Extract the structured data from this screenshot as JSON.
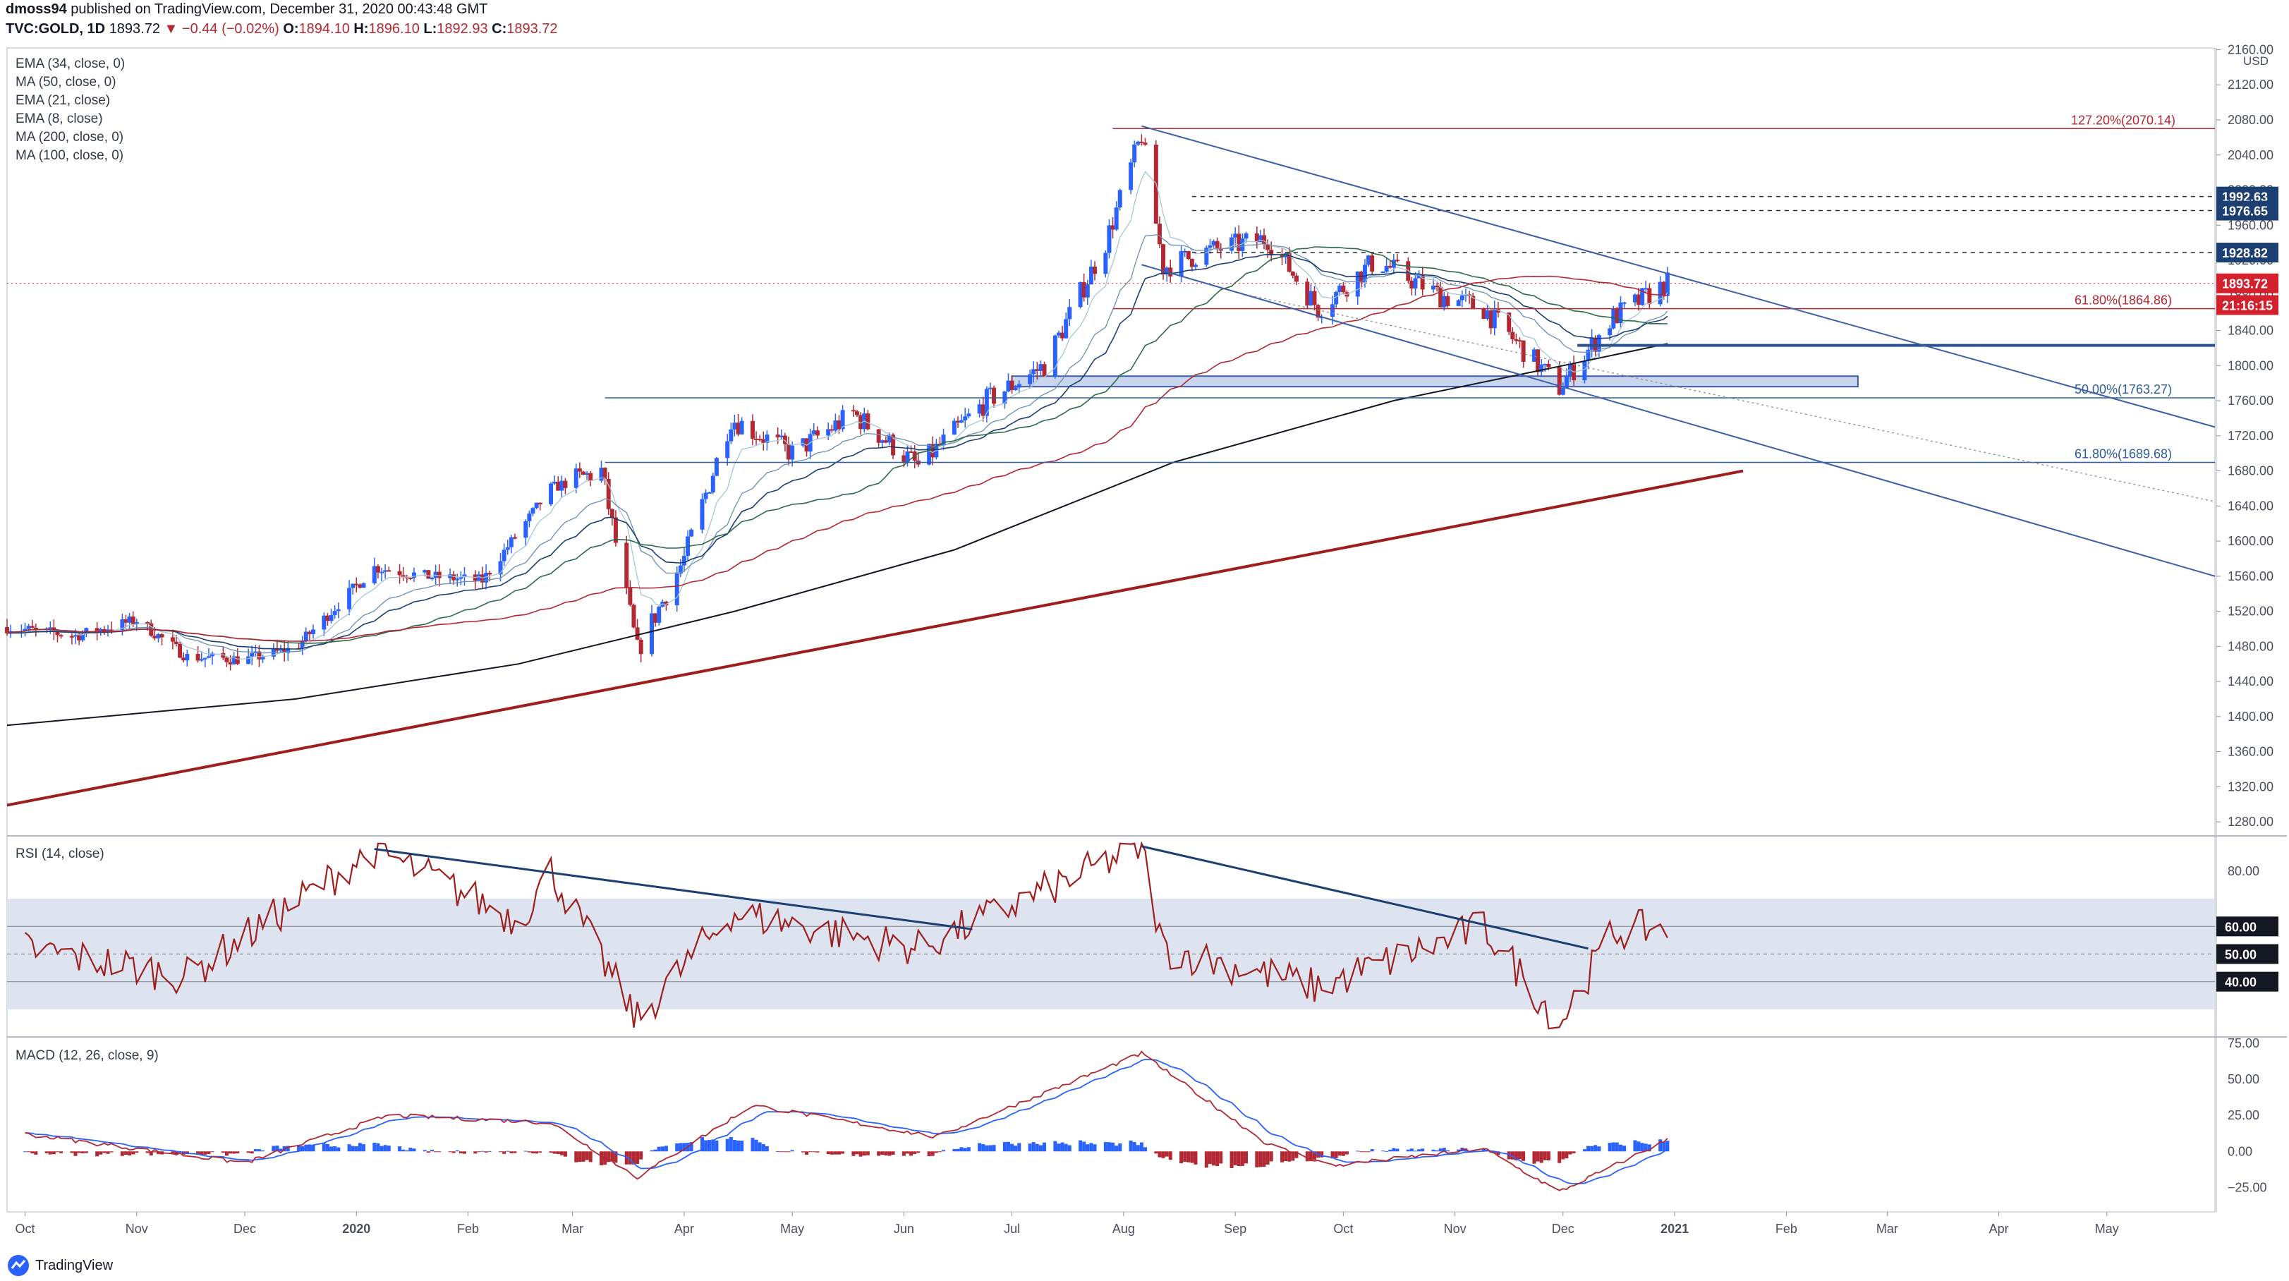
{
  "header": {
    "author": "dmoss94",
    "published": "published on TradingView.com, December 31, 2020 00:43:48 GMT",
    "symbol": "TVC:GOLD, 1D",
    "last": "1893.72",
    "change": "−0.44 (−0.02%)",
    "o_label": "O:",
    "o": "1894.10",
    "h_label": "H:",
    "h": "1896.10",
    "l_label": "L:",
    "l": "1892.93",
    "c_label": "C:",
    "c": "1893.72"
  },
  "indicators": [
    "EMA (34, close, 0)",
    "MA (50, close, 0)",
    "EMA (21, close)",
    "EMA (8, close)",
    "MA (200, close, 0)",
    "MA (100, close, 0)"
  ],
  "footer": {
    "brand": "TradingView"
  },
  "colors": {
    "up": "#2962ff",
    "down": "#b22833",
    "ema34": "#1c3f73",
    "ma50": "#2e6b4a",
    "ema21": "#6a8fb0",
    "ema8": "#a7c6d8",
    "ma200": "#131722",
    "ma100": "#b22833",
    "channel": "#3d5ea8",
    "support": "#9e1d1d",
    "rsi": "#9e1d1d",
    "macd": "#b22833",
    "signal": "#2962ff"
  },
  "chart_data": [
    {
      "type": "candlestick",
      "title": "TVC:GOLD, 1D",
      "currency": "USD",
      "x_ticks": [
        "Oct",
        "Nov",
        "Dec",
        "2020",
        "Feb",
        "Mar",
        "Apr",
        "May",
        "Jun",
        "Jul",
        "Aug",
        "Sep",
        "Oct",
        "Nov",
        "Dec",
        "2021",
        "Feb",
        "Mar",
        "Apr",
        "May"
      ],
      "y_ticks": [
        "2160.00",
        "2120.00",
        "2080.00",
        "2040.00",
        "2000.00",
        "1960.00",
        "1920.00",
        "1880.00",
        "1840.00",
        "1800.00",
        "1760.00",
        "1720.00",
        "1680.00",
        "1640.00",
        "1600.00",
        "1560.00",
        "1520.00",
        "1480.00",
        "1440.00",
        "1400.00",
        "1360.00",
        "1320.00",
        "1280.00"
      ],
      "ylim": [
        1264,
        2162
      ],
      "price_series_monthly": [
        {
          "date": "2019-09-26",
          "close": 1502
        },
        {
          "date": "2019-10-15",
          "close": 1492
        },
        {
          "date": "2019-11-01",
          "close": 1510
        },
        {
          "date": "2019-11-15",
          "close": 1468
        },
        {
          "date": "2019-12-01",
          "close": 1465
        },
        {
          "date": "2019-12-15",
          "close": 1478
        },
        {
          "date": "2020-01-06",
          "close": 1570
        },
        {
          "date": "2020-01-20",
          "close": 1560
        },
        {
          "date": "2020-02-05",
          "close": 1555
        },
        {
          "date": "2020-02-24",
          "close": 1660
        },
        {
          "date": "2020-03-09",
          "close": 1680
        },
        {
          "date": "2020-03-19",
          "close": 1475
        },
        {
          "date": "2020-04-01",
          "close": 1580
        },
        {
          "date": "2020-04-14",
          "close": 1740
        },
        {
          "date": "2020-05-01",
          "close": 1700
        },
        {
          "date": "2020-05-18",
          "close": 1745
        },
        {
          "date": "2020-06-05",
          "close": 1685
        },
        {
          "date": "2020-06-24",
          "close": 1760
        },
        {
          "date": "2020-07-10",
          "close": 1800
        },
        {
          "date": "2020-07-27",
          "close": 1940
        },
        {
          "date": "2020-08-06",
          "close": 2063
        },
        {
          "date": "2020-08-12",
          "close": 1912
        },
        {
          "date": "2020-08-24",
          "close": 1930
        },
        {
          "date": "2020-09-10",
          "close": 1945
        },
        {
          "date": "2020-09-24",
          "close": 1865
        },
        {
          "date": "2020-10-10",
          "close": 1920
        },
        {
          "date": "2020-10-28",
          "close": 1880
        },
        {
          "date": "2020-11-09",
          "close": 1865
        },
        {
          "date": "2020-11-30",
          "close": 1775
        },
        {
          "date": "2020-12-15",
          "close": 1855
        },
        {
          "date": "2020-12-30",
          "close": 1893.72
        }
      ],
      "price_labels": [
        {
          "label": "1992.63",
          "value": 1992.63,
          "style": "dark"
        },
        {
          "label": "1976.65",
          "value": 1976.65,
          "style": "dark"
        },
        {
          "label": "1928.82",
          "value": 1928.82,
          "style": "dark"
        },
        {
          "label": "1893.72",
          "value": 1893.72,
          "style": "red"
        },
        {
          "label": "21:16:15",
          "value": 1869,
          "style": "red"
        }
      ],
      "fib_levels": [
        {
          "label": "127.20%(2070.14)",
          "value": 2070.14,
          "color": "#b22833"
        },
        {
          "label": "61.80%(1864.86)",
          "value": 1864.86,
          "color": "#b22833"
        },
        {
          "label": "50.00%(1763.27)",
          "value": 1763.27,
          "color": "#2e5e9e"
        },
        {
          "label": "61.80%(1689.68)",
          "value": 1689.68,
          "color": "#2e5e9e"
        }
      ],
      "support_zone": [
        1776,
        1788
      ],
      "support_line_value": 1823
    },
    {
      "type": "line",
      "title": "RSI (14, close)",
      "y_ticks": [
        "80.00"
      ],
      "levels": [
        {
          "label": "60.00",
          "value": 60
        },
        {
          "label": "50.00",
          "value": 50
        },
        {
          "label": "40.00",
          "value": 40
        }
      ],
      "band": [
        30,
        70
      ],
      "ylim": [
        20,
        92
      ],
      "values_monthly": [
        {
          "date": "2019-10-01",
          "value": 52
        },
        {
          "date": "2019-11-15",
          "value": 42
        },
        {
          "date": "2020-01-06",
          "value": 88
        },
        {
          "date": "2020-02-15",
          "value": 62
        },
        {
          "date": "2020-02-24",
          "value": 80
        },
        {
          "date": "2020-03-19",
          "value": 26
        },
        {
          "date": "2020-04-14",
          "value": 65
        },
        {
          "date": "2020-06-05",
          "value": 52
        },
        {
          "date": "2020-07-27",
          "value": 83
        },
        {
          "date": "2020-08-06",
          "value": 89
        },
        {
          "date": "2020-08-12",
          "value": 52
        },
        {
          "date": "2020-09-24",
          "value": 38
        },
        {
          "date": "2020-11-09",
          "value": 60
        },
        {
          "date": "2020-11-30",
          "value": 25
        },
        {
          "date": "2020-12-15",
          "value": 58
        },
        {
          "date": "2020-12-30",
          "value": 60
        }
      ]
    },
    {
      "type": "line",
      "title": "MACD (12, 26, close, 9)",
      "y_ticks": [
        "75.00",
        "50.00",
        "25.00",
        "0.00",
        "−25.00"
      ],
      "ylim": [
        -42,
        78
      ],
      "macd_monthly": [
        {
          "date": "2019-10-01",
          "value": 12
        },
        {
          "date": "2019-12-01",
          "value": -8
        },
        {
          "date": "2020-01-10",
          "value": 25
        },
        {
          "date": "2020-02-24",
          "value": 20
        },
        {
          "date": "2020-03-19",
          "value": -18
        },
        {
          "date": "2020-04-20",
          "value": 32
        },
        {
          "date": "2020-06-10",
          "value": 10
        },
        {
          "date": "2020-08-06",
          "value": 68
        },
        {
          "date": "2020-09-10",
          "value": 5
        },
        {
          "date": "2020-09-28",
          "value": -10
        },
        {
          "date": "2020-11-09",
          "value": 2
        },
        {
          "date": "2020-11-30",
          "value": -28
        },
        {
          "date": "2020-12-30",
          "value": 8
        }
      ]
    }
  ]
}
